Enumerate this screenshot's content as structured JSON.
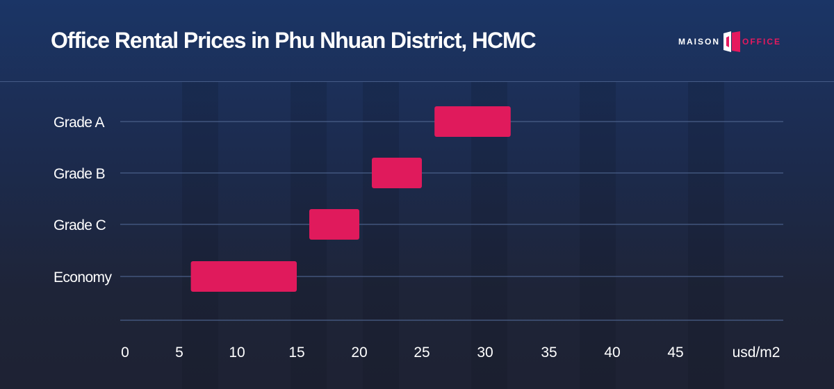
{
  "header": {
    "title": "Office Rental Prices in Phu Nhuan District, HCMC",
    "logo": {
      "left_text": "MAISON",
      "right_text": "OFFICE",
      "accent_color": "#e5195e"
    }
  },
  "chart_data": {
    "type": "bar",
    "orientation": "horizontal-range",
    "title": "Office Rental Prices in Phu Nhuan District, HCMC",
    "categories": [
      "Grade A",
      "Grade B",
      "Grade C",
      "Economy"
    ],
    "ranges": [
      {
        "category": "Grade A",
        "low": 26,
        "high": 32
      },
      {
        "category": "Grade B",
        "low": 21,
        "high": 25
      },
      {
        "category": "Grade C",
        "low": 16,
        "high": 20
      },
      {
        "category": "Economy",
        "low": 6,
        "high": 15
      }
    ],
    "xlim": [
      0,
      50
    ],
    "x_ticks": [
      "0",
      "5",
      "10",
      "15",
      "20",
      "25",
      "30",
      "35",
      "40",
      "45"
    ],
    "x_unit_label": "usd/m2",
    "bar_color": "#e01a5c",
    "grid": "horizontal lines per category",
    "legend": "none"
  }
}
